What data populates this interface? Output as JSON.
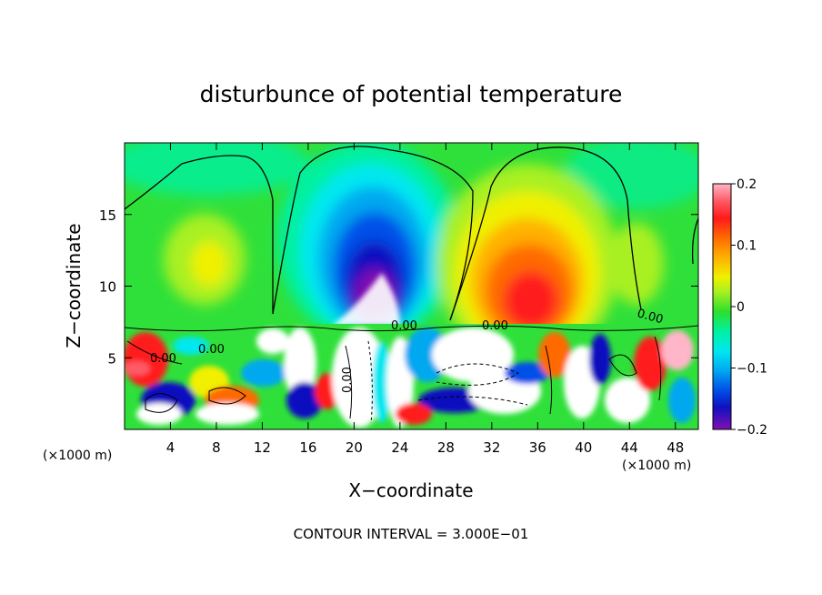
{
  "chart_data": {
    "type": "heatmap",
    "title": "disturbunce of potential temperature",
    "xlabel": "X−coordinate",
    "ylabel": "Z−coordinate",
    "x_unit_left": "(×1000 m)",
    "x_unit_right": "(×1000 m)",
    "xlim": [
      0,
      50
    ],
    "ylim": [
      0,
      20
    ],
    "x_ticks": [
      "4",
      "8",
      "12",
      "16",
      "20",
      "24",
      "28",
      "32",
      "36",
      "40",
      "44",
      "48"
    ],
    "x_tick_values": [
      4,
      8,
      12,
      16,
      20,
      24,
      28,
      32,
      36,
      40,
      44,
      48
    ],
    "y_ticks": [
      "5",
      "10",
      "15"
    ],
    "y_tick_values": [
      5,
      10,
      15
    ],
    "colorbar": {
      "range": [
        -0.2,
        0.2
      ],
      "ticks": [
        "0.2",
        "0.1",
        "0",
        "−0.1",
        "−0.2"
      ],
      "tick_values": [
        0.2,
        0.1,
        0,
        -0.1,
        -0.2
      ]
    },
    "contour_labels": [
      "0.00",
      "0.00",
      "0.00",
      "0.00",
      "0.00",
      "0.00"
    ],
    "footer": "CONTOUR INTERVAL = 3.000E−01",
    "features": [
      {
        "name": "cold anomaly",
        "x": 21,
        "z": 11.5,
        "value": -0.2
      },
      {
        "name": "warm anomaly",
        "x": 34,
        "z": 10,
        "value": 0.15
      },
      {
        "name": "weak warm patches",
        "x": 7,
        "z": 11,
        "value": 0.07
      },
      {
        "name": "weak warm patches",
        "x": 44,
        "z": 11,
        "value": 0.05
      }
    ]
  }
}
